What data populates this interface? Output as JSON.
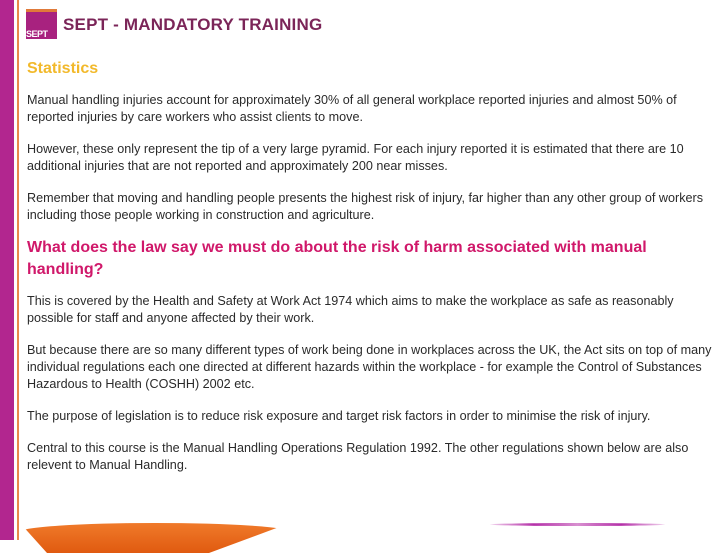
{
  "header": {
    "logo_text": "SEPT",
    "title": "SEPT - MANDATORY TRAINING"
  },
  "section1": {
    "heading": "Statistics",
    "paragraphs": [
      "Manual handling injuries account for approximately 30% of all general workplace reported injuries and almost 50% of reported injuries by care workers who assist clients to move.",
      "However, these only represent the tip of a very large pyramid.  For each injury reported it is estimated that there are 10 additional injuries that are not reported and approximately 200 near misses.",
      "Remember that moving and handling people presents the highest risk of injury, far higher than any other group of workers including those people working in construction and agriculture."
    ]
  },
  "section2": {
    "heading": "What does the law say we must do about the risk of harm associated with manual handling?",
    "paragraphs": [
      "This is covered by the Health and Safety at Work Act 1974 which aims to make the workplace as safe as reasonably possible for staff and anyone affected by their work.",
      "But because there are so many different types of work being done in workplaces across the UK, the Act sits on top of many individual regulations each one directed at different hazards within the workplace - for example the Control of Substances Hazardous to Health (COSHH) 2002 etc.",
      "The purpose of legislation is to reduce risk exposure and target risk factors in order to minimise the risk of injury.",
      "Central to this course is the Manual Handling Operations Regulation 1992. The other regulations shown below are also relevent to Manual Handling."
    ]
  },
  "colors": {
    "brand_magenta": "#b2268f",
    "title": "#7b2558",
    "statistics_heading": "#f2b92b",
    "law_heading": "#d0186a",
    "accent_orange": "#e8894a"
  }
}
